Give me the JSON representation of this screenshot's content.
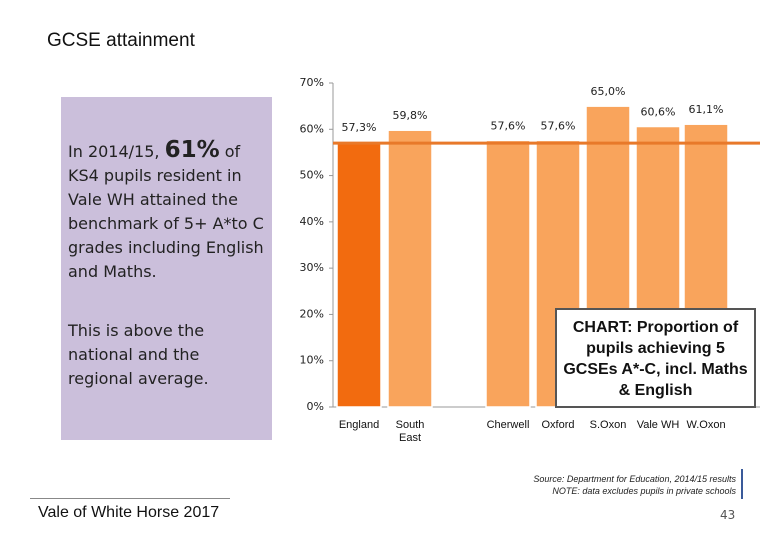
{
  "header": {
    "title": "GCSE attainment"
  },
  "sidebar": {
    "p1_pre": "In 2014/15, ",
    "p1_big": "61%",
    "p1_post": " of KS4 pupils resident in Vale WH attained the benchmark of 5+ A*to C grades including English and Maths.",
    "p2": "This is above the national and the regional average."
  },
  "chart_data": {
    "type": "bar",
    "categories": [
      "England",
      "South East",
      "Cherwell",
      "Oxford",
      "S.Oxon",
      "Vale WH",
      "W.Oxon"
    ],
    "values": [
      57.3,
      59.8,
      57.6,
      57.6,
      65.0,
      60.6,
      61.1
    ],
    "value_labels": [
      "57,3%",
      "59,8%",
      "57,6%",
      "57,6%",
      "65,0%",
      "60,6%",
      "61,1%"
    ],
    "colors": [
      "#f26b0f",
      "#f9a45c",
      "#f9a45c",
      "#f9a45c",
      "#f9a45c",
      "#f9a45c",
      "#f9a45c"
    ],
    "ylim": [
      0,
      70
    ],
    "yticks": [
      {
        "value": 0,
        "label": "0%"
      },
      {
        "value": 10,
        "label": "10%"
      },
      {
        "value": 20,
        "label": "20%"
      },
      {
        "value": 30,
        "label": "30%"
      },
      {
        "value": 40,
        "label": "40%"
      },
      {
        "value": 50,
        "label": "50%"
      },
      {
        "value": 60,
        "label": "60%"
      },
      {
        "value": 70,
        "label": "70%"
      }
    ],
    "reference_line": {
      "value": 57,
      "color": "#e8792a"
    },
    "annotation": "CHART: Proportion of pupils achieving 5 GCSEs A*-C, incl. Maths & English"
  },
  "source": [
    "Source: Department for Education, 2014/15 results",
    "NOTE: data excludes pupils in private schools"
  ],
  "footer": {
    "left": "Vale of White Horse 2017",
    "page": "43"
  }
}
